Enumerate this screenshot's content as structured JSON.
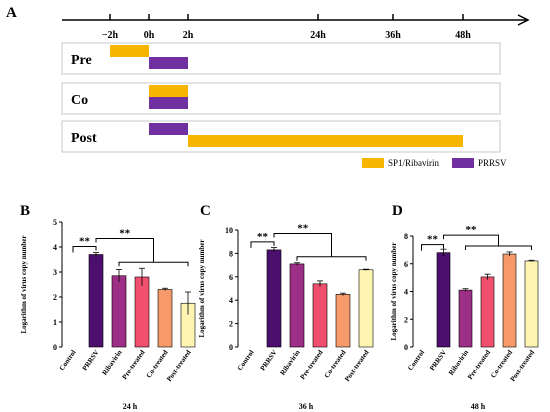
{
  "panel_a": {
    "letter": "A",
    "ticks": [
      {
        "label": "−2h",
        "hour": -2
      },
      {
        "label": "0h",
        "hour": 0
      },
      {
        "label": "2h",
        "hour": 2
      },
      {
        "label": "24h",
        "hour": 24
      },
      {
        "label": "36h",
        "hour": 36
      },
      {
        "label": "48h",
        "hour": 48
      }
    ],
    "rows": [
      {
        "label": "Pre",
        "segments": [
          {
            "treatment": "SP1/Ribavirin",
            "start": -2,
            "end": 0
          },
          {
            "treatment": "PRRSV",
            "start": 0,
            "end": 2
          }
        ]
      },
      {
        "label": "Co",
        "segments": [
          {
            "treatment": "SP1/Ribavirin",
            "start": 0,
            "end": 2
          },
          {
            "treatment": "PRRSV",
            "start": 0,
            "end": 2
          }
        ]
      },
      {
        "label": "Post",
        "segments": [
          {
            "treatment": "PRRSV",
            "start": 0,
            "end": 2
          },
          {
            "treatment": "SP1/Ribavirin",
            "start": 2,
            "end": 48
          }
        ]
      }
    ],
    "legend": [
      {
        "label": "SP1/Ribavirin",
        "color": "#F7B500"
      },
      {
        "label": "PRRSV",
        "color": "#7030A0"
      }
    ]
  },
  "chart_data": [
    {
      "type": "bar",
      "letter": "B",
      "title": "24 h",
      "ylabel": "Logarithm of virus copy number",
      "ylim": [
        0,
        5
      ],
      "yticks": [
        0,
        1,
        2,
        3,
        4,
        5
      ],
      "categories": [
        "Control",
        "PRRSV",
        "Ribavirin",
        "Pre-treated",
        "Co-treated",
        "Post-treated"
      ],
      "values": [
        0,
        3.7,
        2.85,
        2.8,
        2.3,
        1.75
      ],
      "errors": [
        0,
        0.08,
        0.25,
        0.35,
        0.05,
        0.45
      ],
      "colors": [
        "#4B0F6E",
        "#4B0F6E",
        "#9E2F86",
        "#F0506E",
        "#F79A6A",
        "#FFF5B3"
      ],
      "significance": [
        "**",
        "**"
      ]
    },
    {
      "type": "bar",
      "letter": "C",
      "title": "36 h",
      "ylabel": "Logarithm of virus copy number",
      "ylim": [
        0,
        10
      ],
      "yticks": [
        0,
        2,
        4,
        6,
        8,
        10
      ],
      "categories": [
        "Control",
        "PRRSV",
        "Ribavirin",
        "Pre-treated",
        "Co-treated",
        "Post-treated"
      ],
      "values": [
        0,
        8.3,
        7.1,
        5.4,
        4.5,
        6.6
      ],
      "errors": [
        0,
        0.2,
        0.1,
        0.25,
        0.1,
        0.05
      ],
      "colors": [
        "#4B0F6E",
        "#4B0F6E",
        "#9E2F86",
        "#F0506E",
        "#F79A6A",
        "#FFF5B3"
      ],
      "significance": [
        "**",
        "**"
      ]
    },
    {
      "type": "bar",
      "letter": "D",
      "title": "48 h",
      "ylabel": "Logarithm of virus copy number",
      "ylim": [
        0,
        8
      ],
      "yticks": [
        0,
        2,
        4,
        6,
        8
      ],
      "categories": [
        "Control",
        "PRRSV",
        "Ribavirin",
        "Pre-treated",
        "Co-treated",
        "Post-treated"
      ],
      "values": [
        0,
        6.8,
        4.1,
        5.05,
        6.7,
        6.2
      ],
      "errors": [
        0,
        0.25,
        0.1,
        0.2,
        0.15,
        0.05
      ],
      "colors": [
        "#4B0F6E",
        "#4B0F6E",
        "#9E2F86",
        "#F0506E",
        "#F79A6A",
        "#FFF5B3"
      ],
      "significance": [
        "**",
        "**"
      ]
    }
  ]
}
